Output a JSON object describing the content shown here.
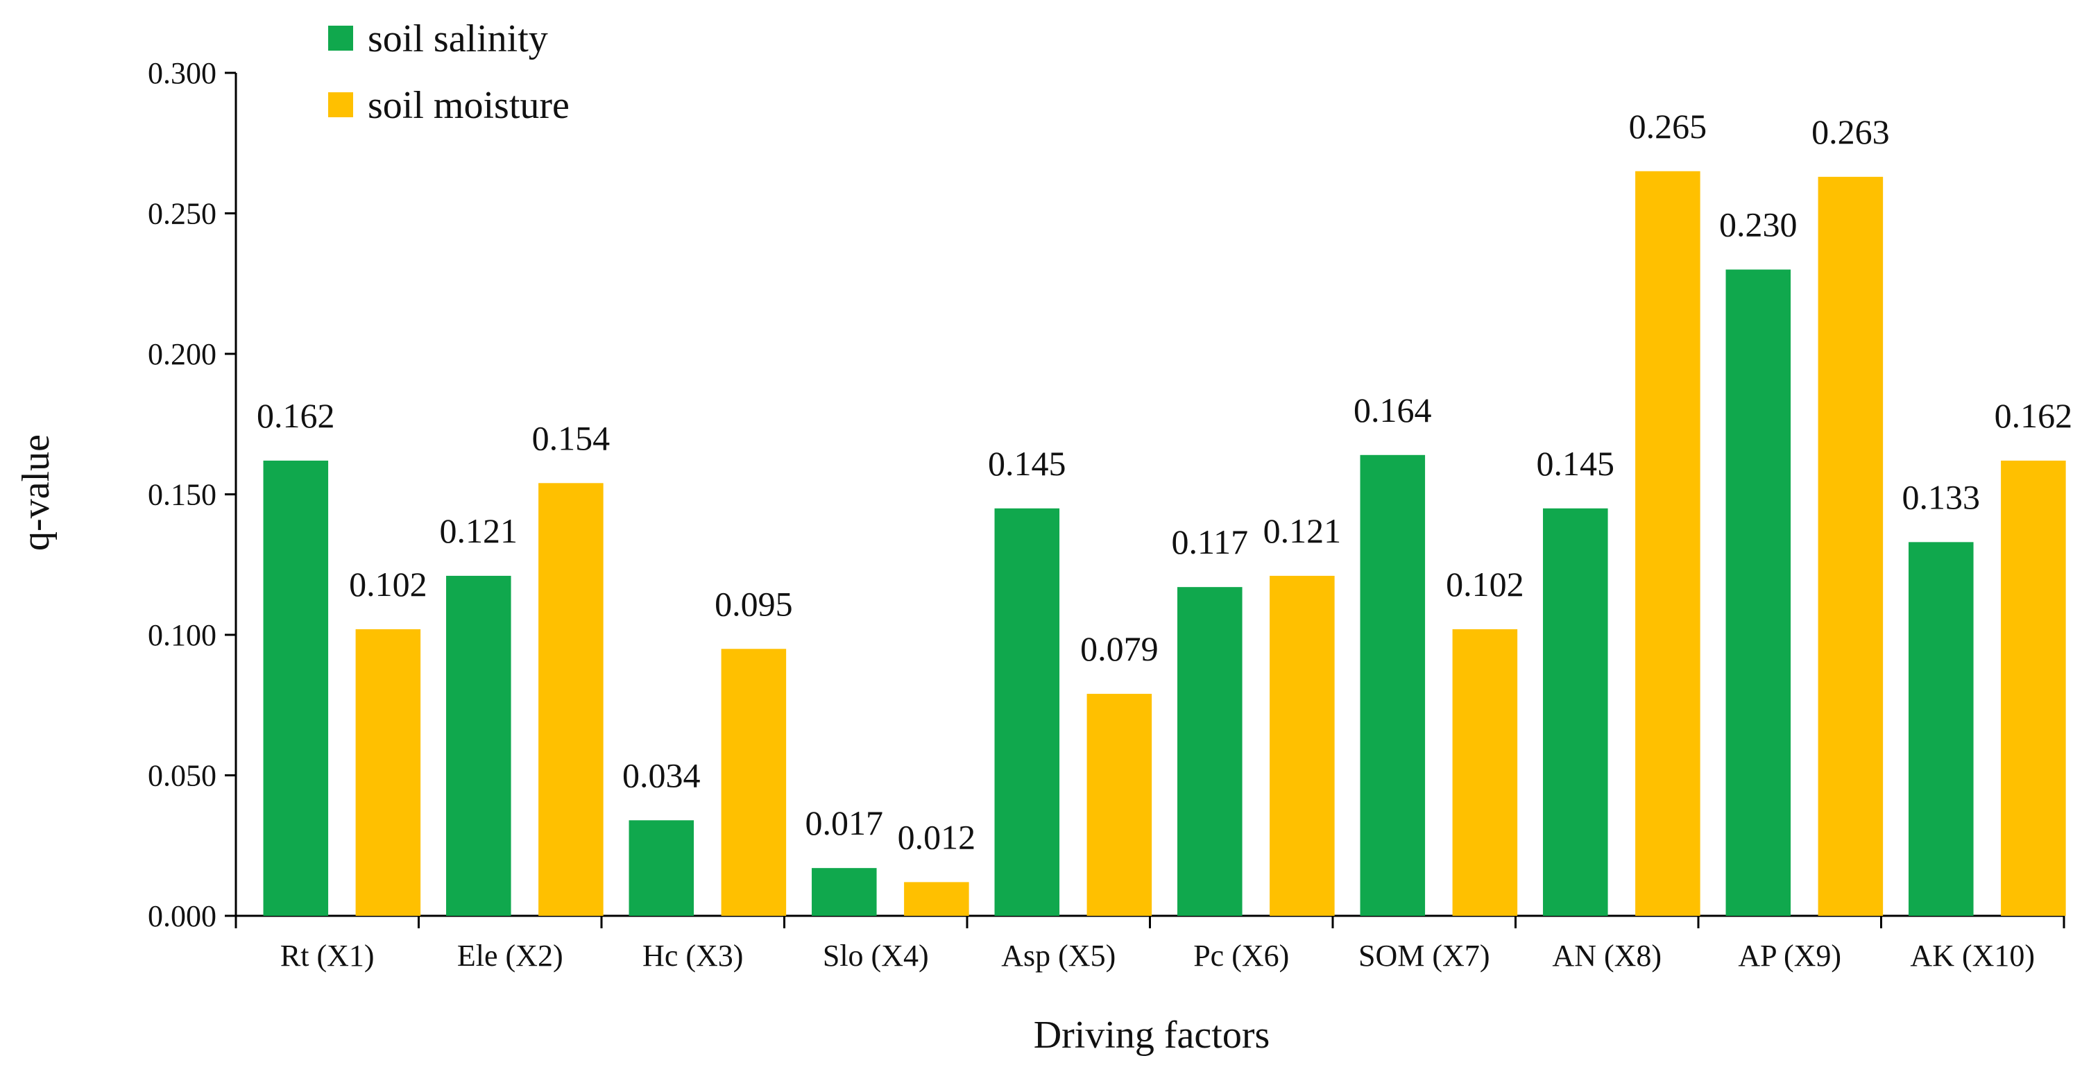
{
  "chart_data": {
    "type": "bar",
    "title": "",
    "xlabel": "Driving factors",
    "ylabel": "q-value",
    "ylim": [
      0,
      0.3
    ],
    "yticks": [
      "0.000",
      "0.050",
      "0.100",
      "0.150",
      "0.200",
      "0.250",
      "0.300"
    ],
    "grid": false,
    "legend_position": "top-left",
    "categories": [
      "Rt (X1)",
      "Ele (X2)",
      "Hc (X3)",
      "Slo (X4)",
      "Asp (X5)",
      "Pc (X6)",
      "SOM (X7)",
      "AN  (X8)",
      "AP (X9)",
      "AK (X10)"
    ],
    "series": [
      {
        "name": "soil salinity",
        "color": "#10A84D",
        "values": [
          0.162,
          0.121,
          0.034,
          0.017,
          0.145,
          0.117,
          0.164,
          0.145,
          0.23,
          0.133
        ],
        "labels": [
          "0.162",
          "0.121",
          "0.034",
          "0.017",
          "0.145",
          "0.117",
          "0.164",
          "0.145",
          "0.230",
          "0.133"
        ]
      },
      {
        "name": "soil moisture",
        "color": "#FFC000",
        "values": [
          0.102,
          0.154,
          0.095,
          0.012,
          0.079,
          0.121,
          0.102,
          0.265,
          0.263,
          0.162
        ],
        "labels": [
          "0.102",
          "0.154",
          "0.095",
          "0.012",
          "0.079",
          "0.121",
          "0.102",
          "0.265",
          "0.263",
          "0.162"
        ]
      }
    ]
  }
}
